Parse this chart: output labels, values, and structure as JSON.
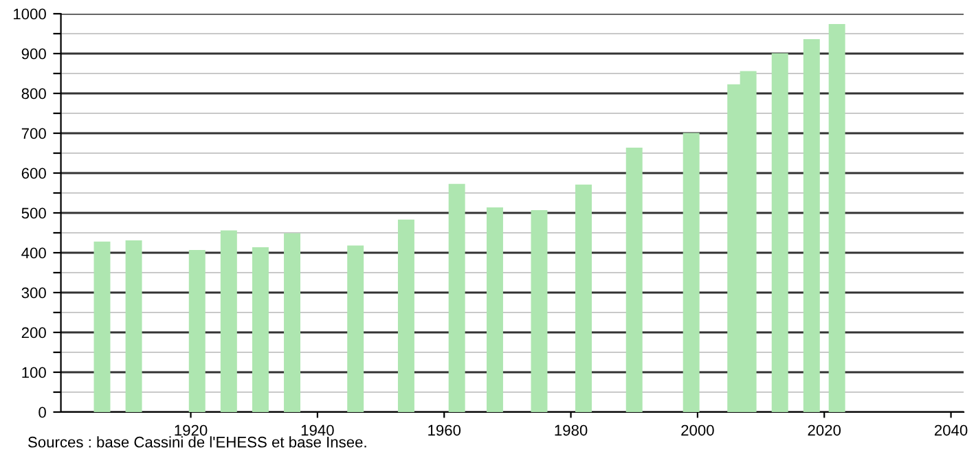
{
  "chart_data": {
    "type": "bar",
    "x": [
      1906,
      1911,
      1921,
      1926,
      1931,
      1936,
      1946,
      1954,
      1962,
      1968,
      1975,
      1982,
      1990,
      1999,
      2006,
      2008,
      2013,
      2018,
      2022
    ],
    "values": [
      428,
      431,
      407,
      456,
      414,
      449,
      418,
      483,
      573,
      514,
      507,
      571,
      664,
      701,
      823,
      856,
      901,
      936,
      974
    ],
    "color": "#aee6b0",
    "xlim": [
      1899.5,
      2042
    ],
    "xticks": [
      1920,
      1940,
      1960,
      1980,
      2000,
      2020,
      2040
    ],
    "ylim": [
      0,
      1000
    ],
    "yticks": [
      0,
      {
        "value": 50,
        "label": null
      },
      100,
      {
        "value": 150,
        "label": null
      },
      200,
      {
        "value": 250,
        "label": null
      },
      300,
      {
        "value": 350,
        "label": null
      },
      400,
      {
        "value": 450,
        "label": null
      },
      500,
      {
        "value": 550,
        "label": null
      },
      600,
      {
        "value": 650,
        "label": null
      },
      700,
      {
        "value": 750,
        "label": null
      },
      800,
      {
        "value": 850,
        "label": null
      },
      900,
      {
        "value": 950,
        "label": null
      },
      1000
    ],
    "grid": "y",
    "annotations": [
      "Sources : base Cassini de l'EHESS et base Insee."
    ]
  }
}
